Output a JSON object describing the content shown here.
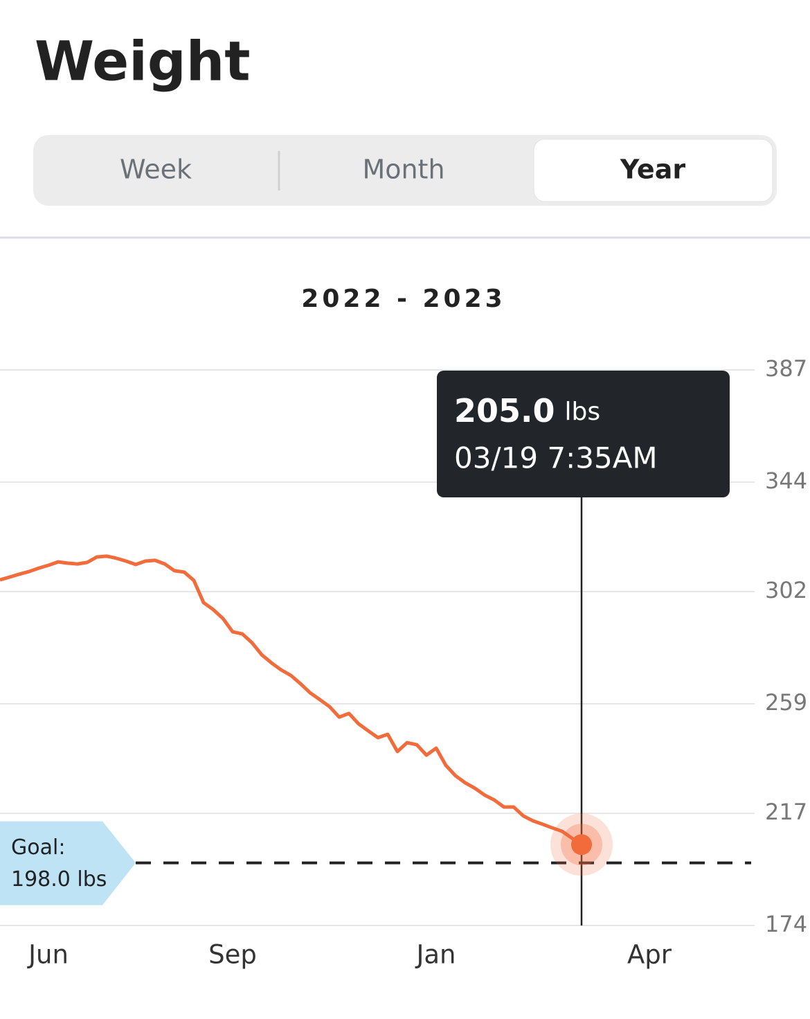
{
  "header": {
    "title": "Weight"
  },
  "tabs": {
    "items": [
      "Week",
      "Month",
      "Year"
    ],
    "selected": 2
  },
  "chart_data": {
    "type": "line",
    "title": "2022 - 2023",
    "categories": [
      null,
      null,
      null,
      null,
      null,
      "Jun",
      null,
      null,
      null,
      null,
      null,
      null,
      null,
      null,
      null,
      null,
      null,
      null,
      null,
      null,
      null,
      null,
      null,
      null,
      "Sep",
      null,
      null,
      null,
      null,
      null,
      null,
      null,
      null,
      null,
      null,
      null,
      null,
      null,
      null,
      null,
      null,
      null,
      null,
      null,
      null,
      "Jan",
      null,
      null,
      null,
      null,
      null,
      null,
      null,
      null,
      null,
      null,
      null,
      null,
      null,
      null,
      null,
      null,
      null,
      null,
      null,
      null,
      null,
      "Apr",
      null,
      null,
      null,
      null,
      null,
      null,
      null,
      null,
      null,
      null,
      null
    ],
    "values": [
      306.5,
      307.6,
      308.7,
      309.7,
      311.0,
      312.1,
      313.4,
      312.9,
      312.6,
      313.2,
      315.3,
      315.6,
      314.8,
      313.7,
      312.4,
      313.7,
      314.0,
      312.6,
      310.0,
      309.5,
      306.3,
      297.8,
      295.1,
      291.7,
      286.6,
      285.8,
      282.4,
      277.8,
      274.7,
      272.0,
      269.9,
      266.7,
      263.2,
      260.6,
      257.9,
      253.9,
      255.3,
      251.3,
      248.6,
      246.0,
      247.3,
      240.7,
      244.1,
      243.3,
      239.3,
      242.0,
      235.4,
      231.4,
      228.7,
      226.6,
      224.0,
      222.1,
      219.4,
      219.4,
      216.0,
      214.1,
      212.8,
      211.4,
      210.1,
      207.5,
      205.0,
      null,
      null,
      null,
      null,
      null,
      null,
      null,
      null,
      null,
      null,
      null,
      null,
      null,
      null,
      null,
      null,
      null,
      null
    ],
    "color": "#f26b3a",
    "ylim": [
      174,
      387
    ],
    "yticks": [
      174,
      217,
      259,
      302,
      344,
      387
    ],
    "grid": true,
    "goal": {
      "label": "Goal:",
      "value": 198,
      "value_label": "198.0 lbs"
    },
    "tooltip": {
      "value": "205.0",
      "unit": "lbs",
      "time": "03/19 7:35AM"
    }
  }
}
